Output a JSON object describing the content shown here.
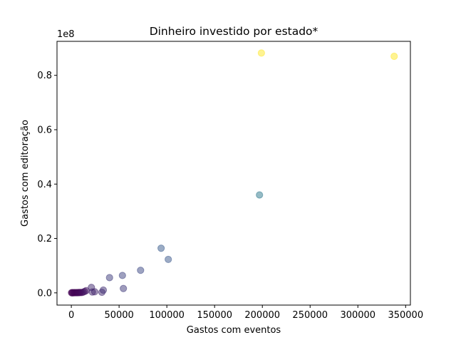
{
  "chart_data": {
    "type": "scatter",
    "title": "Dinheiro investido por estado*",
    "xlabel": "Gastos com eventos",
    "ylabel": "Gastos com editoração",
    "y_scale_label": "1e8",
    "xlim": [
      -15000,
      355000
    ],
    "ylim": [
      -0.045,
      0.925
    ],
    "x_ticks": [
      0,
      50000,
      100000,
      150000,
      200000,
      250000,
      300000,
      350000
    ],
    "x_tick_labels": [
      "0",
      "50000",
      "100000",
      "150000",
      "200000",
      "250000",
      "300000",
      "350000"
    ],
    "y_ticks": [
      0.0,
      0.2,
      0.4,
      0.6,
      0.8
    ],
    "y_tick_labels": [
      "0.0",
      "0.2",
      "0.4",
      "0.6",
      "0.8"
    ],
    "grid": false,
    "legend": "none",
    "colormap": "viridis",
    "point_alpha": 0.5,
    "points": [
      {
        "x": 200,
        "y": 0.0004,
        "c": 0.0
      },
      {
        "x": 800,
        "y": 0.0006,
        "c": 0.0
      },
      {
        "x": 1500,
        "y": 0.0003,
        "c": 0.0
      },
      {
        "x": 2500,
        "y": 0.0005,
        "c": 0.0
      },
      {
        "x": 3500,
        "y": 0.0008,
        "c": 0.01
      },
      {
        "x": 4500,
        "y": 0.0004,
        "c": 0.01
      },
      {
        "x": 5500,
        "y": 0.001,
        "c": 0.01
      },
      {
        "x": 6500,
        "y": 0.0006,
        "c": 0.01
      },
      {
        "x": 7500,
        "y": 0.0012,
        "c": 0.02
      },
      {
        "x": 8500,
        "y": 0.0009,
        "c": 0.02
      },
      {
        "x": 9500,
        "y": 0.0015,
        "c": 0.02
      },
      {
        "x": 11000,
        "y": 0.001,
        "c": 0.03
      },
      {
        "x": 12500,
        "y": 0.003,
        "c": 0.04
      },
      {
        "x": 14000,
        "y": 0.005,
        "c": 0.05
      },
      {
        "x": 15500,
        "y": 0.008,
        "c": 0.06
      },
      {
        "x": 21000,
        "y": 0.02,
        "c": 0.12
      },
      {
        "x": 22000,
        "y": 0.003,
        "c": 0.1
      },
      {
        "x": 24500,
        "y": 0.004,
        "c": 0.1
      },
      {
        "x": 32000,
        "y": 0.002,
        "c": 0.12
      },
      {
        "x": 33500,
        "y": 0.01,
        "c": 0.14
      },
      {
        "x": 40000,
        "y": 0.056,
        "c": 0.18
      },
      {
        "x": 53500,
        "y": 0.064,
        "c": 0.2
      },
      {
        "x": 54500,
        "y": 0.016,
        "c": 0.17
      },
      {
        "x": 72500,
        "y": 0.083,
        "c": 0.22
      },
      {
        "x": 94000,
        "y": 0.164,
        "c": 0.28
      },
      {
        "x": 101500,
        "y": 0.123,
        "c": 0.27
      },
      {
        "x": 197000,
        "y": 0.36,
        "c": 0.4
      },
      {
        "x": 199000,
        "y": 0.882,
        "c": 1.0
      },
      {
        "x": 338000,
        "y": 0.87,
        "c": 1.0
      }
    ]
  }
}
